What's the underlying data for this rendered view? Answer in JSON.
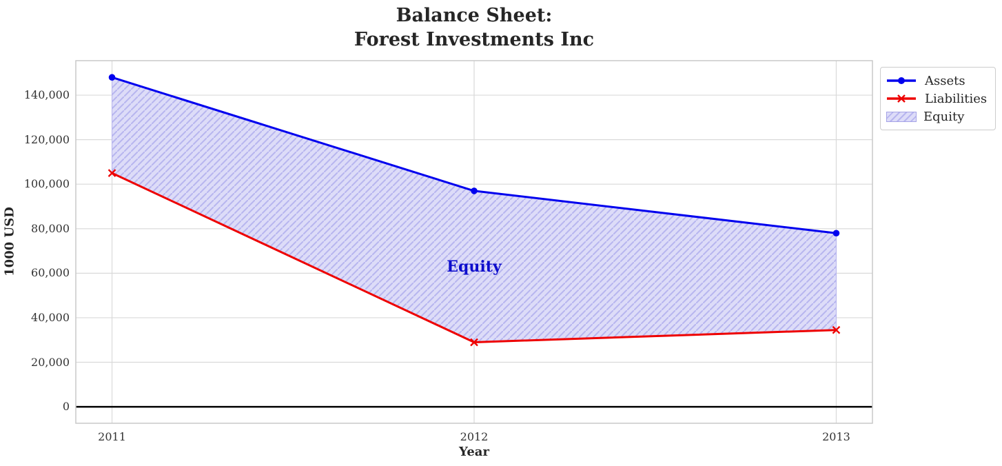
{
  "figure": {
    "title_lines": [
      "Balance Sheet:",
      "Forest Investments Inc"
    ]
  },
  "chart_data": {
    "type": "line",
    "title": "Balance Sheet: Forest Investments Inc",
    "xlabel": "Year",
    "ylabel": "1000 USD",
    "x": [
      2011,
      2012,
      2013
    ],
    "xtick_labels": [
      "2011",
      "2012",
      "2013"
    ],
    "yticks": [
      0,
      20000,
      40000,
      60000,
      80000,
      100000,
      120000,
      140000
    ],
    "ytick_labels": [
      "0",
      "20,000",
      "40,000",
      "60,000",
      "80,000",
      "100,000",
      "120,000",
      "140,000"
    ],
    "xlim": [
      2010.9,
      2013.1
    ],
    "ylim": [
      -7400,
      155500
    ],
    "grid": true,
    "series": [
      {
        "name": "Assets",
        "color": "#0000ee",
        "marker": "circle",
        "line_width": 3,
        "values": [
          148000,
          97000,
          78000
        ]
      },
      {
        "name": "Liabilities",
        "color": "#ee0000",
        "marker": "x",
        "line_width": 3,
        "values": [
          105000,
          29000,
          34500
        ]
      }
    ],
    "fill_between": {
      "name": "Equity",
      "between": [
        "Assets",
        "Liabilities"
      ],
      "facecolor": "#dddcf8",
      "hatch": "//",
      "hatch_color": "#b7b5ef",
      "label": {
        "text": "Equity",
        "color": "#0d0dcc",
        "x": 2012,
        "y": 63000
      }
    },
    "zero_line": {
      "y": 0,
      "color": "#000000",
      "width": 2.5
    },
    "legend": {
      "position": "outside upper right",
      "entries": [
        "Assets",
        "Liabilities",
        "Equity"
      ]
    }
  },
  "colors": {
    "grid": "#d9d9d9",
    "spine": "#c9c9c9",
    "background": "#ffffff",
    "text": "#262626",
    "tick_text": "#333333"
  }
}
